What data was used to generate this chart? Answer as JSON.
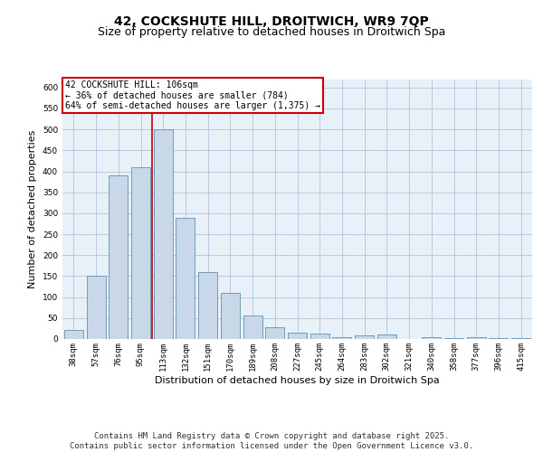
{
  "title_line1": "42, COCKSHUTE HILL, DROITWICH, WR9 7QP",
  "title_line2": "Size of property relative to detached houses in Droitwich Spa",
  "xlabel": "Distribution of detached houses by size in Droitwich Spa",
  "ylabel": "Number of detached properties",
  "categories": [
    "38sqm",
    "57sqm",
    "76sqm",
    "95sqm",
    "113sqm",
    "132sqm",
    "151sqm",
    "170sqm",
    "189sqm",
    "208sqm",
    "227sqm",
    "245sqm",
    "264sqm",
    "283sqm",
    "302sqm",
    "321sqm",
    "340sqm",
    "358sqm",
    "377sqm",
    "396sqm",
    "415sqm"
  ],
  "values": [
    22,
    150,
    390,
    410,
    500,
    290,
    160,
    110,
    55,
    28,
    15,
    12,
    5,
    8,
    10,
    0,
    4,
    2,
    5,
    2,
    3
  ],
  "bar_color": "#c8d8e8",
  "bar_edge_color": "#6090b0",
  "grid_color": "#b0c4d8",
  "background_color": "#e8f0f8",
  "annotation_box_text": "42 COCKSHUTE HILL: 106sqm\n← 36% of detached houses are smaller (784)\n64% of semi-detached houses are larger (1,375) →",
  "annotation_box_color": "#ffffff",
  "annotation_box_edge_color": "#cc0000",
  "vline_x_index": 4,
  "vline_color": "#cc0000",
  "ylim": [
    0,
    620
  ],
  "yticks": [
    0,
    50,
    100,
    150,
    200,
    250,
    300,
    350,
    400,
    450,
    500,
    550,
    600
  ],
  "footer_text": "Contains HM Land Registry data © Crown copyright and database right 2025.\nContains public sector information licensed under the Open Government Licence v3.0.",
  "title_fontsize": 10,
  "subtitle_fontsize": 9,
  "tick_fontsize": 6.5,
  "label_fontsize": 8,
  "footer_fontsize": 6.5
}
